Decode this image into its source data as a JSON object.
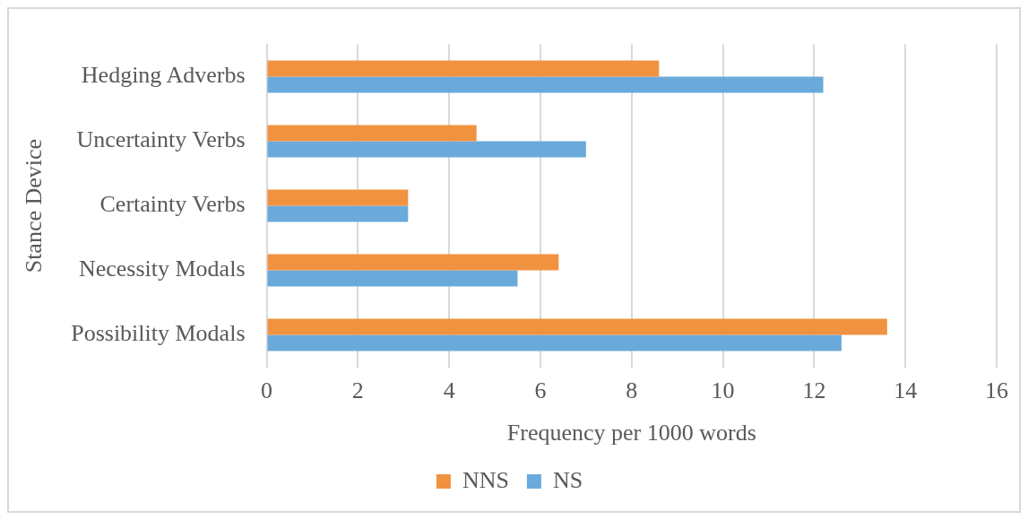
{
  "chart_data": {
    "type": "bar",
    "orientation": "horizontal",
    "xlabel": "Frequency per 1000 words",
    "ylabel": "Stance Device",
    "categories": [
      "Hedging Adverbs",
      "Uncertainty Verbs",
      "Certainty Verbs",
      "Necessity Modals",
      "Possibility Modals"
    ],
    "series": [
      {
        "name": "NNS",
        "color": "#f19241",
        "values": [
          8.6,
          4.6,
          3.1,
          6.4,
          13.6
        ]
      },
      {
        "name": "NS",
        "color": "#6aaadb",
        "values": [
          12.2,
          7.0,
          3.1,
          5.5,
          12.6
        ]
      }
    ],
    "xlim": [
      0,
      16
    ],
    "xticks": [
      0,
      2,
      4,
      6,
      8,
      10,
      12,
      14,
      16
    ],
    "grid": "x",
    "legend": "bottom"
  }
}
